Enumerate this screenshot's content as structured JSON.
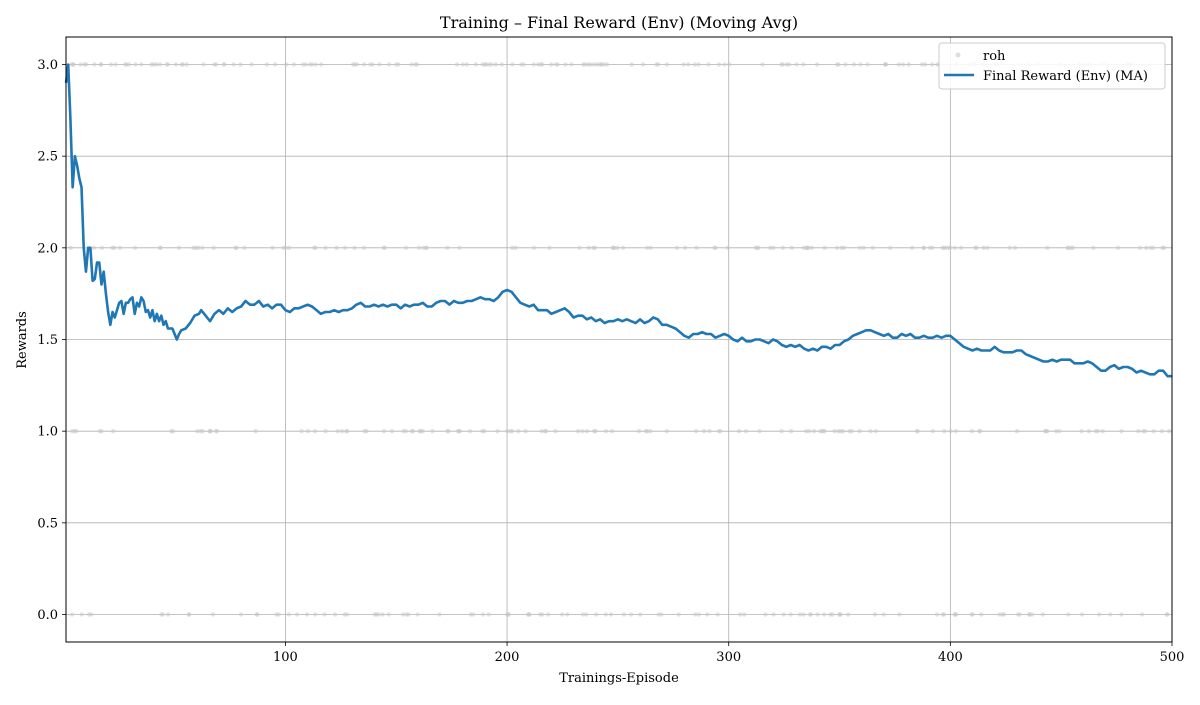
{
  "chart_data": {
    "type": "line",
    "title": "Training – Final Reward (Env) (Moving Avg)",
    "xlabel": "Trainings-Episode",
    "ylabel": "Rewards",
    "xlim": [
      1,
      500
    ],
    "ylim": [
      -0.15,
      3.15
    ],
    "x_ticks": [
      100,
      200,
      300,
      400,
      500
    ],
    "y_ticks": [
      0.0,
      0.5,
      1.0,
      1.5,
      2.0,
      2.5,
      3.0
    ],
    "x_tick_labels": [
      "100",
      "200",
      "300",
      "400",
      "500"
    ],
    "y_tick_labels": [
      "0.0",
      "0.5",
      "1.0",
      "1.5",
      "2.0",
      "2.5",
      "3.0"
    ],
    "grid": true,
    "legend": {
      "position": "top-right",
      "entries": [
        {
          "label": "roh",
          "style": "markers",
          "color": "#c8c8c8"
        },
        {
          "label": "Final Reward (Env) (MA)",
          "style": "line",
          "color": "#1f77b4"
        }
      ]
    },
    "raw_series": {
      "name": "roh",
      "color": "#c8c8c8",
      "levels": [
        0,
        1,
        2,
        3
      ],
      "counts_approx": {
        "0": 110,
        "1": 120,
        "2": 110,
        "3": 160
      }
    },
    "series": [
      {
        "name": "Final Reward (Env) (MA)",
        "color": "#1f77b4",
        "points": [
          [
            1,
            2.9
          ],
          [
            2,
            3.0
          ],
          [
            3,
            2.7
          ],
          [
            4,
            2.33
          ],
          [
            5,
            2.5
          ],
          [
            6,
            2.45
          ],
          [
            7,
            2.38
          ],
          [
            8,
            2.33
          ],
          [
            9,
            2.0
          ],
          [
            10,
            1.87
          ],
          [
            11,
            2.0
          ],
          [
            12,
            2.0
          ],
          [
            13,
            1.82
          ],
          [
            14,
            1.83
          ],
          [
            15,
            1.92
          ],
          [
            16,
            1.92
          ],
          [
            17,
            1.8
          ],
          [
            18,
            1.87
          ],
          [
            19,
            1.75
          ],
          [
            20,
            1.65
          ],
          [
            21,
            1.58
          ],
          [
            22,
            1.65
          ],
          [
            23,
            1.62
          ],
          [
            24,
            1.66
          ],
          [
            25,
            1.7
          ],
          [
            26,
            1.71
          ],
          [
            27,
            1.64
          ],
          [
            28,
            1.7
          ],
          [
            29,
            1.7
          ],
          [
            30,
            1.72
          ],
          [
            31,
            1.73
          ],
          [
            32,
            1.64
          ],
          [
            33,
            1.7
          ],
          [
            34,
            1.68
          ],
          [
            35,
            1.73
          ],
          [
            36,
            1.71
          ],
          [
            37,
            1.65
          ],
          [
            38,
            1.66
          ],
          [
            39,
            1.62
          ],
          [
            40,
            1.66
          ],
          [
            41,
            1.6
          ],
          [
            42,
            1.64
          ],
          [
            43,
            1.6
          ],
          [
            44,
            1.63
          ],
          [
            45,
            1.58
          ],
          [
            46,
            1.6
          ],
          [
            47,
            1.56
          ],
          [
            48,
            1.56
          ],
          [
            49,
            1.56
          ],
          [
            50,
            1.53
          ],
          [
            51,
            1.5
          ],
          [
            52,
            1.53
          ],
          [
            53,
            1.55
          ],
          [
            55,
            1.56
          ],
          [
            57,
            1.59
          ],
          [
            59,
            1.63
          ],
          [
            61,
            1.64
          ],
          [
            62,
            1.66
          ],
          [
            64,
            1.63
          ],
          [
            66,
            1.6
          ],
          [
            68,
            1.64
          ],
          [
            70,
            1.66
          ],
          [
            72,
            1.64
          ],
          [
            74,
            1.67
          ],
          [
            76,
            1.65
          ],
          [
            78,
            1.67
          ],
          [
            80,
            1.68
          ],
          [
            82,
            1.71
          ],
          [
            84,
            1.69
          ],
          [
            86,
            1.69
          ],
          [
            88,
            1.71
          ],
          [
            90,
            1.68
          ],
          [
            92,
            1.69
          ],
          [
            94,
            1.67
          ],
          [
            96,
            1.69
          ],
          [
            98,
            1.69
          ],
          [
            100,
            1.66
          ],
          [
            102,
            1.65
          ],
          [
            104,
            1.67
          ],
          [
            106,
            1.67
          ],
          [
            108,
            1.68
          ],
          [
            110,
            1.69
          ],
          [
            112,
            1.68
          ],
          [
            114,
            1.66
          ],
          [
            116,
            1.64
          ],
          [
            118,
            1.65
          ],
          [
            120,
            1.65
          ],
          [
            122,
            1.66
          ],
          [
            124,
            1.65
          ],
          [
            126,
            1.66
          ],
          [
            128,
            1.66
          ],
          [
            130,
            1.67
          ],
          [
            132,
            1.69
          ],
          [
            134,
            1.7
          ],
          [
            136,
            1.68
          ],
          [
            138,
            1.68
          ],
          [
            140,
            1.69
          ],
          [
            142,
            1.68
          ],
          [
            144,
            1.69
          ],
          [
            146,
            1.68
          ],
          [
            148,
            1.69
          ],
          [
            150,
            1.69
          ],
          [
            152,
            1.67
          ],
          [
            154,
            1.69
          ],
          [
            156,
            1.68
          ],
          [
            158,
            1.69
          ],
          [
            160,
            1.69
          ],
          [
            162,
            1.7
          ],
          [
            164,
            1.68
          ],
          [
            166,
            1.68
          ],
          [
            168,
            1.7
          ],
          [
            170,
            1.71
          ],
          [
            172,
            1.71
          ],
          [
            174,
            1.69
          ],
          [
            176,
            1.71
          ],
          [
            178,
            1.7
          ],
          [
            180,
            1.7
          ],
          [
            182,
            1.71
          ],
          [
            184,
            1.71
          ],
          [
            186,
            1.72
          ],
          [
            188,
            1.73
          ],
          [
            190,
            1.72
          ],
          [
            192,
            1.72
          ],
          [
            194,
            1.71
          ],
          [
            196,
            1.73
          ],
          [
            198,
            1.76
          ],
          [
            200,
            1.77
          ],
          [
            202,
            1.76
          ],
          [
            204,
            1.73
          ],
          [
            206,
            1.7
          ],
          [
            208,
            1.69
          ],
          [
            210,
            1.68
          ],
          [
            212,
            1.69
          ],
          [
            214,
            1.66
          ],
          [
            216,
            1.66
          ],
          [
            218,
            1.66
          ],
          [
            220,
            1.64
          ],
          [
            222,
            1.65
          ],
          [
            224,
            1.66
          ],
          [
            226,
            1.67
          ],
          [
            228,
            1.65
          ],
          [
            230,
            1.62
          ],
          [
            232,
            1.63
          ],
          [
            234,
            1.63
          ],
          [
            236,
            1.61
          ],
          [
            238,
            1.62
          ],
          [
            240,
            1.6
          ],
          [
            242,
            1.61
          ],
          [
            244,
            1.59
          ],
          [
            246,
            1.6
          ],
          [
            248,
            1.6
          ],
          [
            250,
            1.61
          ],
          [
            252,
            1.6
          ],
          [
            254,
            1.61
          ],
          [
            256,
            1.6
          ],
          [
            258,
            1.59
          ],
          [
            260,
            1.61
          ],
          [
            262,
            1.59
          ],
          [
            264,
            1.6
          ],
          [
            266,
            1.62
          ],
          [
            268,
            1.61
          ],
          [
            270,
            1.58
          ],
          [
            272,
            1.58
          ],
          [
            274,
            1.57
          ],
          [
            276,
            1.56
          ],
          [
            278,
            1.54
          ],
          [
            280,
            1.52
          ],
          [
            282,
            1.51
          ],
          [
            284,
            1.53
          ],
          [
            286,
            1.53
          ],
          [
            288,
            1.54
          ],
          [
            290,
            1.53
          ],
          [
            292,
            1.53
          ],
          [
            294,
            1.51
          ],
          [
            296,
            1.52
          ],
          [
            298,
            1.53
          ],
          [
            300,
            1.52
          ],
          [
            302,
            1.5
          ],
          [
            304,
            1.49
          ],
          [
            306,
            1.51
          ],
          [
            308,
            1.49
          ],
          [
            310,
            1.49
          ],
          [
            312,
            1.5
          ],
          [
            314,
            1.5
          ],
          [
            316,
            1.49
          ],
          [
            318,
            1.48
          ],
          [
            320,
            1.5
          ],
          [
            322,
            1.49
          ],
          [
            324,
            1.47
          ],
          [
            326,
            1.46
          ],
          [
            328,
            1.47
          ],
          [
            330,
            1.46
          ],
          [
            332,
            1.47
          ],
          [
            334,
            1.45
          ],
          [
            336,
            1.44
          ],
          [
            338,
            1.45
          ],
          [
            340,
            1.44
          ],
          [
            342,
            1.46
          ],
          [
            344,
            1.46
          ],
          [
            346,
            1.45
          ],
          [
            348,
            1.47
          ],
          [
            350,
            1.47
          ],
          [
            352,
            1.49
          ],
          [
            354,
            1.5
          ],
          [
            356,
            1.52
          ],
          [
            358,
            1.53
          ],
          [
            360,
            1.54
          ],
          [
            362,
            1.55
          ],
          [
            364,
            1.55
          ],
          [
            366,
            1.54
          ],
          [
            368,
            1.53
          ],
          [
            370,
            1.52
          ],
          [
            372,
            1.53
          ],
          [
            374,
            1.51
          ],
          [
            376,
            1.51
          ],
          [
            378,
            1.53
          ],
          [
            380,
            1.52
          ],
          [
            382,
            1.53
          ],
          [
            384,
            1.51
          ],
          [
            386,
            1.51
          ],
          [
            388,
            1.52
          ],
          [
            390,
            1.51
          ],
          [
            392,
            1.51
          ],
          [
            394,
            1.52
          ],
          [
            396,
            1.51
          ],
          [
            398,
            1.52
          ],
          [
            400,
            1.52
          ],
          [
            402,
            1.5
          ],
          [
            404,
            1.48
          ],
          [
            406,
            1.46
          ],
          [
            408,
            1.45
          ],
          [
            410,
            1.44
          ],
          [
            412,
            1.45
          ],
          [
            414,
            1.44
          ],
          [
            416,
            1.44
          ],
          [
            418,
            1.44
          ],
          [
            420,
            1.46
          ],
          [
            422,
            1.44
          ],
          [
            424,
            1.43
          ],
          [
            426,
            1.43
          ],
          [
            428,
            1.43
          ],
          [
            430,
            1.44
          ],
          [
            432,
            1.44
          ],
          [
            434,
            1.42
          ],
          [
            436,
            1.41
          ],
          [
            438,
            1.4
          ],
          [
            440,
            1.39
          ],
          [
            442,
            1.38
          ],
          [
            444,
            1.38
          ],
          [
            446,
            1.39
          ],
          [
            448,
            1.38
          ],
          [
            450,
            1.39
          ],
          [
            452,
            1.39
          ],
          [
            454,
            1.39
          ],
          [
            456,
            1.37
          ],
          [
            458,
            1.37
          ],
          [
            460,
            1.37
          ],
          [
            462,
            1.38
          ],
          [
            464,
            1.37
          ],
          [
            466,
            1.35
          ],
          [
            468,
            1.33
          ],
          [
            470,
            1.33
          ],
          [
            472,
            1.35
          ],
          [
            474,
            1.36
          ],
          [
            476,
            1.34
          ],
          [
            478,
            1.35
          ],
          [
            480,
            1.35
          ],
          [
            482,
            1.34
          ],
          [
            484,
            1.32
          ],
          [
            486,
            1.33
          ],
          [
            488,
            1.32
          ],
          [
            490,
            1.31
          ],
          [
            492,
            1.31
          ],
          [
            494,
            1.33
          ],
          [
            496,
            1.33
          ],
          [
            498,
            1.3
          ],
          [
            500,
            1.3
          ]
        ]
      }
    ]
  }
}
